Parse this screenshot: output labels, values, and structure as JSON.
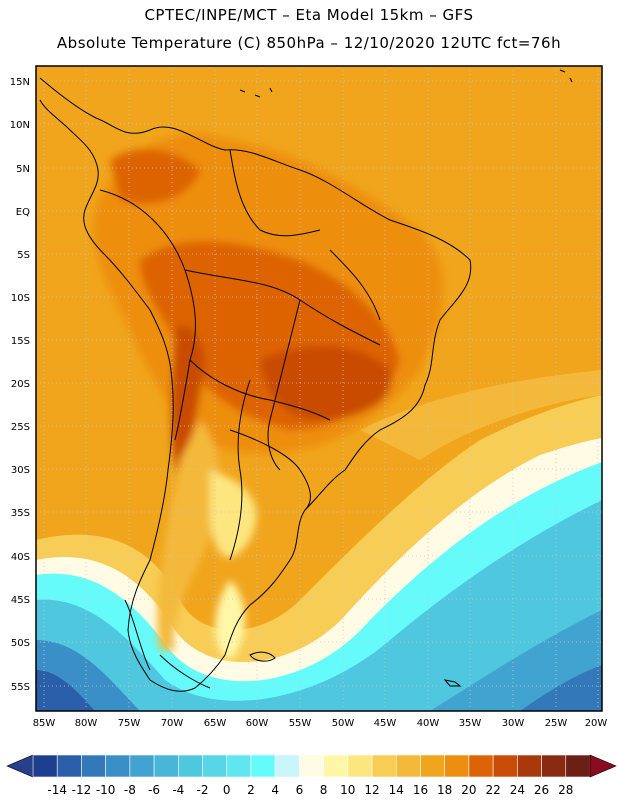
{
  "header": {
    "line1": "CPTEC/INPE/MCT –  Eta Model 15km – GFS",
    "line2": "Absolute Temperature (C) 850hPa – 12/10/2020 12UTC fct=76h"
  },
  "axes": {
    "lat_labels": [
      "15N",
      "10N",
      "5N",
      "EQ",
      "5S",
      "10S",
      "15S",
      "20S",
      "25S",
      "30S",
      "35S",
      "40S",
      "45S",
      "50S",
      "55S"
    ],
    "lon_labels": [
      "85W",
      "80W",
      "75W",
      "70W",
      "65W",
      "60W",
      "55W",
      "50W",
      "45W",
      "40W",
      "35W",
      "30W",
      "25W",
      "20W"
    ]
  },
  "colorbar": {
    "ticks": [
      "-14",
      "-12",
      "-10",
      "-8",
      "-6",
      "-4",
      "-2",
      "0",
      "2",
      "4",
      "6",
      "8",
      "10",
      "12",
      "14",
      "16",
      "18",
      "20",
      "22",
      "24",
      "26",
      "28"
    ],
    "colors": [
      "#1d3f8f",
      "#2a5ea8",
      "#3378b8",
      "#3a8fc6",
      "#41a4d0",
      "#48b6d8",
      "#4fc7de",
      "#56d6e6",
      "#5fe6ee",
      "#66fbfb",
      "#c8f6fb",
      "#fffbe4",
      "#fff7a8",
      "#fde680",
      "#f8cd55",
      "#f4b93a",
      "#f0a51c",
      "#ee8e10",
      "#dd6406",
      "#c84c05",
      "#a9390a",
      "#8a2a10",
      "#6c1f14"
    ],
    "under_color": "#283f8c",
    "over_color": "#8a0c20"
  }
}
